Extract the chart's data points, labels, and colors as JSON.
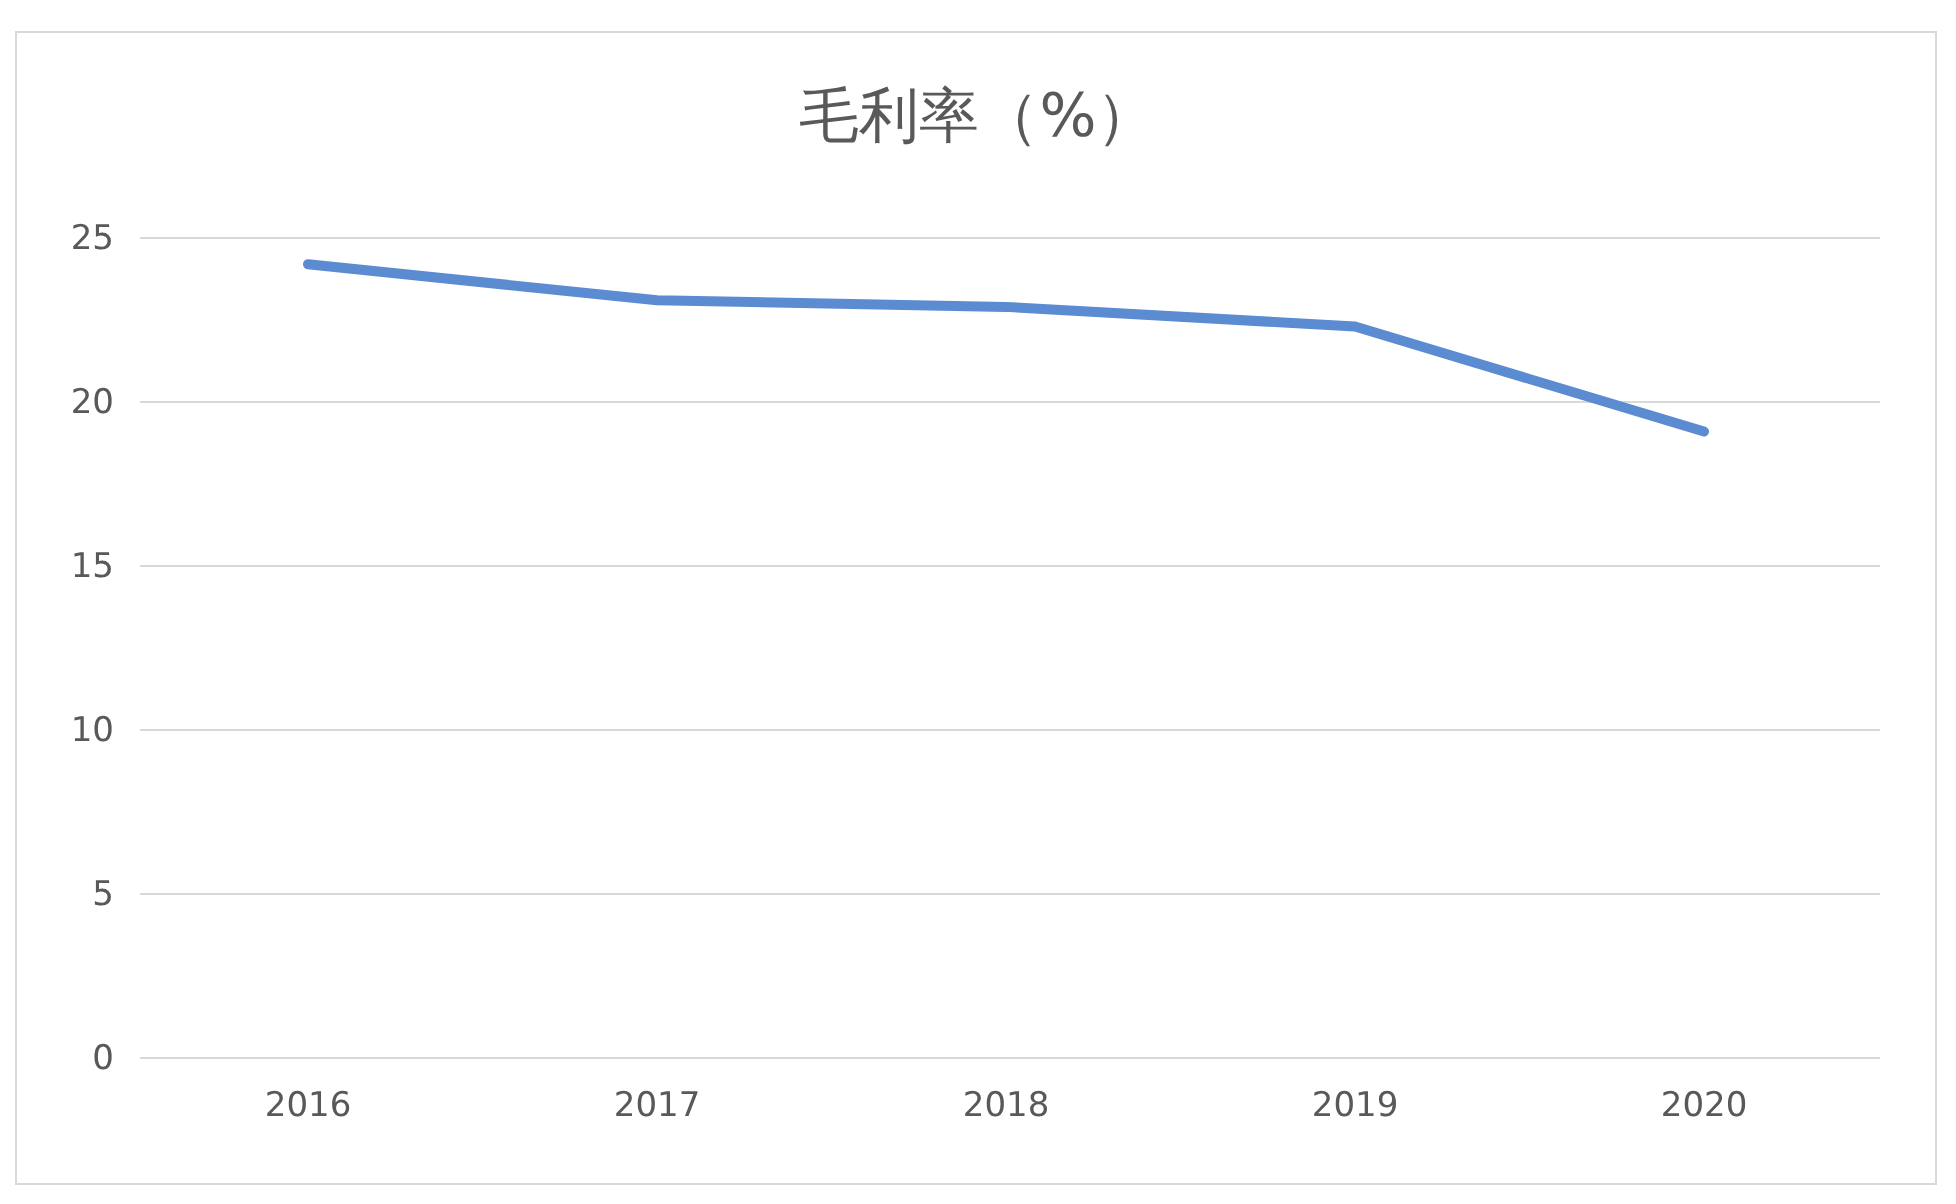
{
  "chart_data": {
    "type": "line",
    "title": "毛利率（%）",
    "categories": [
      "2016",
      "2017",
      "2018",
      "2019",
      "2020"
    ],
    "series": [
      {
        "color": "#5b8bd0",
        "values": [
          24.2,
          23.1,
          22.9,
          22.3,
          19.1
        ]
      }
    ],
    "ylim": [
      0,
      25
    ],
    "yticks": [
      0,
      5,
      10,
      15,
      20,
      25
    ],
    "grid": "y",
    "marker": "none",
    "line_style": "solid"
  }
}
